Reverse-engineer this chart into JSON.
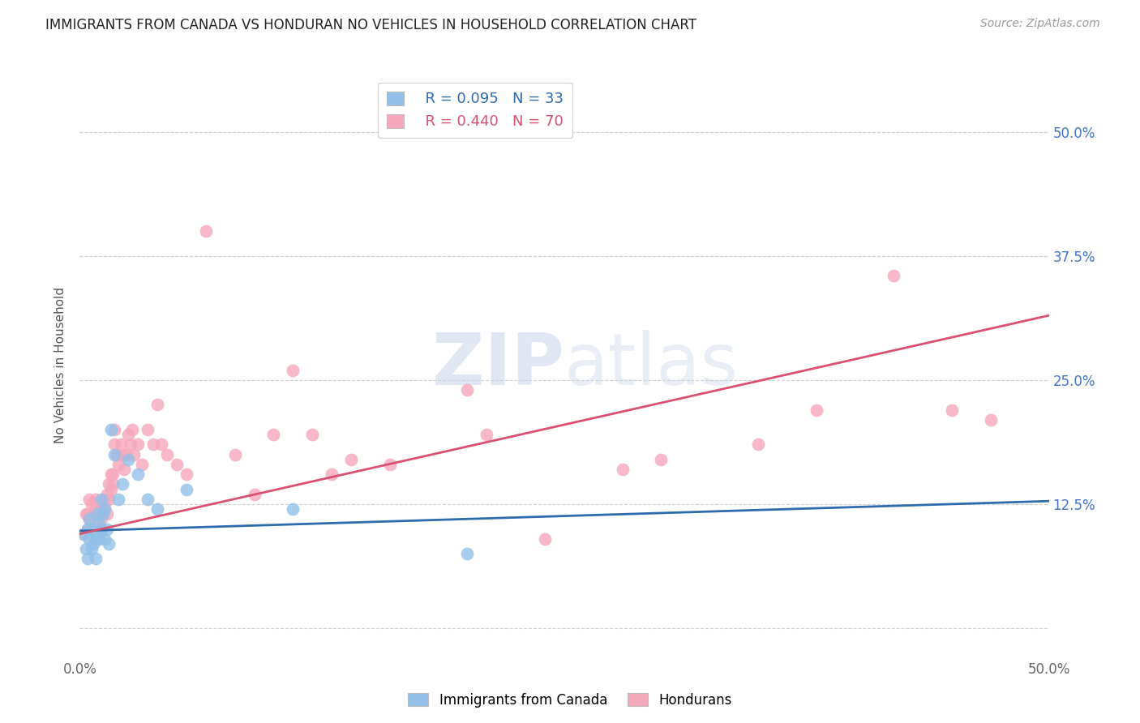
{
  "title": "IMMIGRANTS FROM CANADA VS HONDURAN NO VEHICLES IN HOUSEHOLD CORRELATION CHART",
  "source": "Source: ZipAtlas.com",
  "ylabel": "No Vehicles in Household",
  "xlim": [
    0.0,
    0.5
  ],
  "ylim": [
    -0.03,
    0.56
  ],
  "yticks": [
    0.0,
    0.125,
    0.25,
    0.375,
    0.5
  ],
  "xticks": [
    0.0,
    0.125,
    0.25,
    0.375,
    0.5
  ],
  "xtick_labels": [
    "0.0%",
    "",
    "",
    "",
    "50.0%"
  ],
  "background_color": "#ffffff",
  "grid_color": "#d0d0d0",
  "canada_color": "#92C0E8",
  "honduran_color": "#F5A8BC",
  "canada_line_color": "#2E6BAD",
  "honduran_line_color": "#D95070",
  "canada_R": 0.095,
  "canada_N": 33,
  "honduran_R": 0.44,
  "honduran_N": 70,
  "canada_line_x0": 0.0,
  "canada_line_y0": 0.098,
  "canada_line_x1": 0.5,
  "canada_line_y1": 0.128,
  "honduran_line_x0": 0.0,
  "honduran_line_y0": 0.095,
  "honduran_line_x1": 0.5,
  "honduran_line_y1": 0.315,
  "canada_scatter_x": [
    0.002,
    0.003,
    0.004,
    0.004,
    0.005,
    0.005,
    0.006,
    0.006,
    0.007,
    0.008,
    0.008,
    0.009,
    0.009,
    0.01,
    0.01,
    0.011,
    0.011,
    0.012,
    0.013,
    0.013,
    0.014,
    0.015,
    0.016,
    0.018,
    0.02,
    0.022,
    0.025,
    0.03,
    0.035,
    0.04,
    0.055,
    0.11,
    0.2
  ],
  "canada_scatter_y": [
    0.095,
    0.08,
    0.07,
    0.1,
    0.09,
    0.11,
    0.1,
    0.08,
    0.085,
    0.09,
    0.07,
    0.095,
    0.115,
    0.09,
    0.105,
    0.1,
    0.13,
    0.115,
    0.09,
    0.12,
    0.1,
    0.085,
    0.2,
    0.175,
    0.13,
    0.145,
    0.17,
    0.155,
    0.13,
    0.12,
    0.14,
    0.12,
    0.075
  ],
  "honduran_scatter_x": [
    0.002,
    0.003,
    0.004,
    0.004,
    0.005,
    0.005,
    0.006,
    0.006,
    0.007,
    0.007,
    0.008,
    0.008,
    0.009,
    0.009,
    0.01,
    0.01,
    0.011,
    0.011,
    0.012,
    0.012,
    0.013,
    0.013,
    0.014,
    0.014,
    0.015,
    0.015,
    0.016,
    0.016,
    0.017,
    0.017,
    0.018,
    0.018,
    0.019,
    0.02,
    0.021,
    0.022,
    0.023,
    0.024,
    0.025,
    0.026,
    0.027,
    0.028,
    0.03,
    0.032,
    0.035,
    0.038,
    0.04,
    0.042,
    0.045,
    0.05,
    0.055,
    0.065,
    0.08,
    0.1,
    0.12,
    0.14,
    0.16,
    0.21,
    0.24,
    0.28,
    0.3,
    0.35,
    0.38,
    0.42,
    0.45,
    0.47,
    0.13,
    0.2,
    0.09,
    0.11
  ],
  "honduran_scatter_y": [
    0.095,
    0.115,
    0.1,
    0.115,
    0.13,
    0.11,
    0.1,
    0.125,
    0.115,
    0.1,
    0.13,
    0.12,
    0.115,
    0.1,
    0.1,
    0.115,
    0.12,
    0.11,
    0.125,
    0.115,
    0.13,
    0.12,
    0.135,
    0.115,
    0.145,
    0.13,
    0.155,
    0.14,
    0.155,
    0.145,
    0.2,
    0.185,
    0.175,
    0.165,
    0.185,
    0.175,
    0.16,
    0.175,
    0.195,
    0.185,
    0.2,
    0.175,
    0.185,
    0.165,
    0.2,
    0.185,
    0.225,
    0.185,
    0.175,
    0.165,
    0.155,
    0.4,
    0.175,
    0.195,
    0.195,
    0.17,
    0.165,
    0.195,
    0.09,
    0.16,
    0.17,
    0.185,
    0.22,
    0.355,
    0.22,
    0.21,
    0.155,
    0.24,
    0.135,
    0.26
  ],
  "watermark_zip": "ZIP",
  "watermark_atlas": "atlas",
  "legend_label_canada": "Immigrants from Canada",
  "legend_label_honduran": "Hondurans"
}
